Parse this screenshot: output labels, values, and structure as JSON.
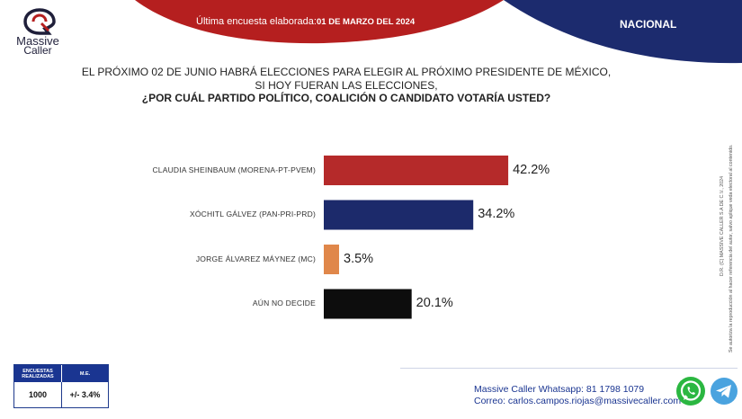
{
  "brand": {
    "line1": "Massive",
    "line2": "Caller"
  },
  "header": {
    "label": "Última encuesta elaborada:",
    "date": "01 DE MARZO DEL 2024",
    "scope": "NACIONAL"
  },
  "question": {
    "line1": "EL PRÓXIMO 02 DE JUNIO HABRÁ ELECCIONES PARA ELEGIR AL PRÓXIMO PRESIDENTE DE MÉXICO,",
    "line2": "SI HOY FUERAN LAS ELECCIONES,",
    "line3": "¿POR CUÁL PARTIDO POLÍTICO, COALICIÓN  O CANDIDATO VOTARÍA USTED?"
  },
  "chart_data": {
    "type": "bar",
    "orientation": "horizontal",
    "categories": [
      "CLAUDIA SHEINBAUM (MORENA-PT-PVEM)",
      "XÓCHITL GÁLVEZ (PAN-PRI-PRD)",
      "JORGE ÁLVAREZ MÁYNEZ (MC)",
      "AÚN NO DECIDE"
    ],
    "values": [
      42.2,
      34.2,
      3.5,
      20.1
    ],
    "value_labels": [
      "42.2%",
      "34.2%",
      "3.5%",
      "20.1%"
    ],
    "colors": [
      "#b52a2a",
      "#1c2a6b",
      "#e0874a",
      "#0d0d0d"
    ],
    "xlim": [
      0,
      100
    ],
    "grid": false,
    "legend": "none"
  },
  "side_note": {
    "line1": "D.R. (C) MASSIVE CALLER S.A DE C.V., 2024",
    "line2": "Se autoriza la reproducción al hacer referencia del autor, salvo aplique veda electoral al contenido."
  },
  "table": {
    "col1_header": "ENCUESTAS REALIZADAS",
    "col2_header": "M.E.",
    "col1_value": "1000",
    "col2_value": "+/- 3.4%"
  },
  "contact": {
    "whatsapp": "Massive Caller Whatsapp: 81 1798 1079",
    "email": "Correo: carlos.campos.riojas@massivecaller.com"
  },
  "icons": [
    "whatsapp-icon",
    "telegram-icon"
  ]
}
